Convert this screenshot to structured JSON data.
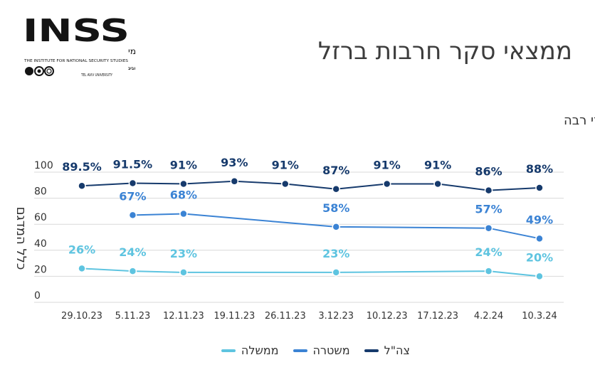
{
  "header": {
    "title": "ממצאי סקר חרבות ברזל"
  },
  "logo": {
    "wordmark": "INSS",
    "hebrew_name": "המכון למחקרי ביטחון לאומי",
    "english_name": "THE INSTITUTE FOR NATIONAL SECURITY STUDIES",
    "university": "TEL AVIV UNIVERSITY",
    "university_hebrew": "אוניברסיטת תל אביב"
  },
  "chart_data": {
    "type": "line",
    "title": "שיעור המשיבים שהביעו אמון במוסדות – במידה רבה ודי רבה",
    "ylabel": "כלל המדגם",
    "xlabel": "",
    "categories": [
      "29.10.23",
      "5.11.23",
      "12.11.23",
      "19.11.23",
      "26.11.23",
      "3.12.23",
      "10.12.23",
      "17.12.23",
      "4.2.24",
      "10.3.24"
    ],
    "yticks": [
      0,
      20,
      40,
      60,
      80,
      100
    ],
    "ylim": [
      0,
      100
    ],
    "grid": true,
    "legend": "bottom",
    "series": [
      {
        "name": "צה\"ל",
        "color": "#163a6c",
        "values": [
          89.5,
          91.5,
          91,
          93,
          91,
          87,
          91,
          91,
          86,
          88
        ],
        "labels": [
          "89.5%",
          "91.5%",
          "91%",
          "93%",
          "91%",
          "87%",
          "91%",
          "91%",
          "86%",
          "88%"
        ]
      },
      {
        "name": "משטרה",
        "color": "#3b83d4",
        "values": [
          null,
          67,
          68,
          null,
          null,
          58,
          null,
          null,
          57,
          49
        ],
        "labels": [
          null,
          "67%",
          "68%",
          null,
          null,
          "58%",
          null,
          null,
          "57%",
          "49%"
        ]
      },
      {
        "name": "ממשלה",
        "color": "#5ec4e0",
        "values": [
          26,
          24,
          23,
          null,
          null,
          23,
          null,
          null,
          24,
          20
        ],
        "labels": [
          "26%",
          "24%",
          "23%",
          null,
          null,
          "23%",
          null,
          null,
          "24%",
          "20%"
        ]
      }
    ]
  }
}
